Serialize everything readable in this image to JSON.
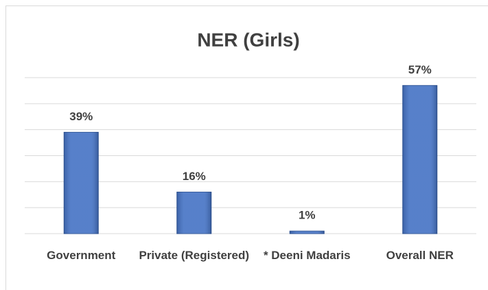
{
  "chart_data": {
    "type": "bar",
    "title": "NER (Girls)",
    "categories": [
      "Government",
      "Private (Registered)",
      "* Deeni Madaris",
      "Overall NER"
    ],
    "values": [
      39,
      16,
      1,
      57
    ],
    "value_labels": [
      "39%",
      "16%",
      "1%",
      "57%"
    ],
    "color": "#4472c4",
    "ylim": [
      0,
      60
    ],
    "yticks": [
      0,
      10,
      20,
      30,
      40,
      50,
      60
    ],
    "grid": true
  }
}
